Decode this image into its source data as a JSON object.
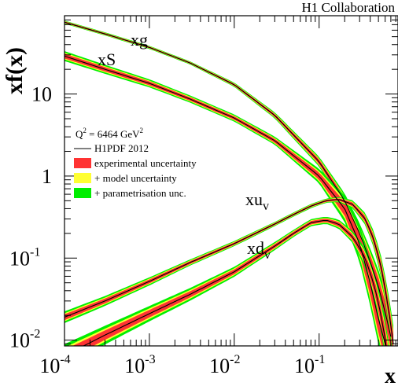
{
  "chart_data": {
    "type": "line",
    "title": "H1 Collaboration",
    "xlabel": "x",
    "ylabel": "xf(x)",
    "xscale": "log",
    "yscale": "log",
    "xlim": [
      0.0001,
      0.85
    ],
    "ylim": [
      0.0085,
      90
    ],
    "x_ticks": [
      "10",
      "10",
      "10",
      "10"
    ],
    "x_tick_exponents": [
      "-4",
      "-3",
      "-2",
      "-1"
    ],
    "y_ticks": [
      {
        "base": "10",
        "exp": "-2"
      },
      {
        "base": "10",
        "exp": "-1"
      },
      {
        "base": "1",
        "exp": ""
      },
      {
        "base": "10",
        "exp": ""
      }
    ],
    "legend": {
      "placement": "center-left",
      "q2_label": "Q",
      "q2_exp": "2",
      "q2_value": " = 6464 GeV",
      "q2_unit_exp": "2",
      "entries": [
        {
          "label": "H1PDF 2012",
          "kind": "line",
          "color": "#000000"
        },
        {
          "label": "experimental uncertainty",
          "kind": "band",
          "color": "#ff3333"
        },
        {
          "label": "+ model uncertainty",
          "kind": "band",
          "color": "#ffff33"
        },
        {
          "label": "+ parametrisation unc.",
          "kind": "band",
          "color": "#00ee00"
        }
      ]
    },
    "series": [
      {
        "name": "xg",
        "label_base": "xg",
        "label_sub": "",
        "x": [
          0.0001,
          0.0003,
          0.001,
          0.003,
          0.01,
          0.03,
          0.1,
          0.2,
          0.3,
          0.4,
          0.5,
          0.6,
          0.7
        ],
        "y": [
          75,
          54,
          37,
          24,
          13,
          5.5,
          1.5,
          0.5,
          0.2,
          0.09,
          0.045,
          0.022,
          0.011
        ],
        "rel_unc": [
          0.03,
          0.03,
          0.03,
          0.03,
          0.04,
          0.06,
          0.1,
          0.15,
          0.22,
          0.3,
          0.4,
          0.5,
          0.6
        ]
      },
      {
        "name": "xS",
        "label_base": "xS",
        "label_sub": "",
        "x": [
          0.0001,
          0.0003,
          0.001,
          0.003,
          0.01,
          0.03,
          0.1,
          0.2,
          0.3,
          0.4,
          0.5,
          0.6
        ],
        "y": [
          29,
          20,
          13.5,
          8.7,
          5.1,
          2.7,
          1.0,
          0.4,
          0.15,
          0.05,
          0.018,
          0.009
        ],
        "rel_unc": [
          0.1,
          0.09,
          0.08,
          0.07,
          0.07,
          0.08,
          0.15,
          0.3,
          0.45,
          0.6,
          0.7,
          0.8
        ]
      },
      {
        "name": "xu_v",
        "label_base": "xu",
        "label_sub": "v",
        "x": [
          0.0001,
          0.0003,
          0.001,
          0.003,
          0.01,
          0.03,
          0.05,
          0.08,
          0.12,
          0.17,
          0.25,
          0.35,
          0.45,
          0.55,
          0.65,
          0.75
        ],
        "y": [
          0.019,
          0.03,
          0.052,
          0.088,
          0.15,
          0.26,
          0.34,
          0.43,
          0.5,
          0.52,
          0.45,
          0.3,
          0.16,
          0.07,
          0.026,
          0.009
        ],
        "rel_unc": [
          0.12,
          0.1,
          0.08,
          0.06,
          0.05,
          0.04,
          0.04,
          0.04,
          0.04,
          0.05,
          0.08,
          0.12,
          0.18,
          0.25,
          0.35,
          0.45
        ]
      },
      {
        "name": "xd_v",
        "label_base": "xd",
        "label_sub": "v",
        "x": [
          0.0001,
          0.0003,
          0.001,
          0.003,
          0.01,
          0.03,
          0.05,
          0.08,
          0.12,
          0.17,
          0.25,
          0.35,
          0.45,
          0.55,
          0.65
        ],
        "y": [
          0.0065,
          0.0115,
          0.021,
          0.036,
          0.068,
          0.14,
          0.2,
          0.27,
          0.29,
          0.26,
          0.18,
          0.1,
          0.045,
          0.018,
          0.006
        ],
        "rel_unc": [
          0.25,
          0.2,
          0.16,
          0.13,
          0.1,
          0.08,
          0.07,
          0.07,
          0.07,
          0.09,
          0.12,
          0.2,
          0.3,
          0.4,
          0.5
        ]
      }
    ]
  }
}
